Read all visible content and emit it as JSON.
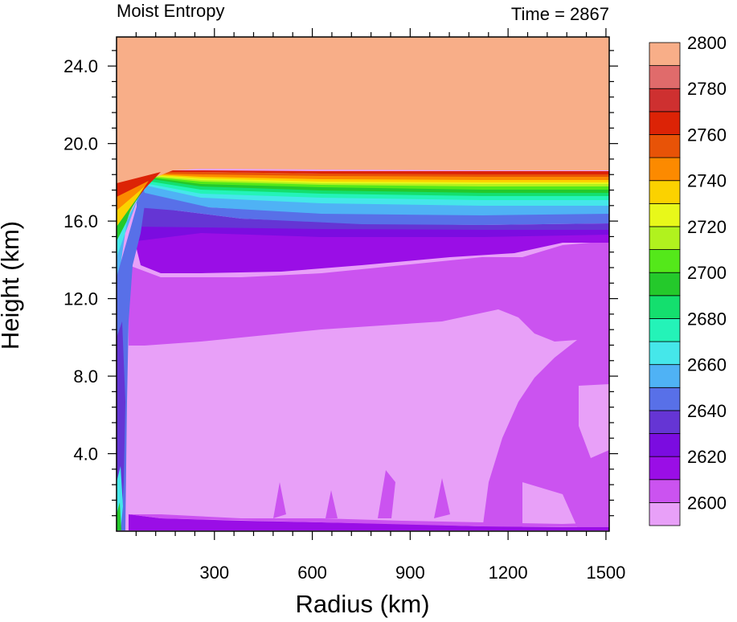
{
  "header": {
    "left_title": "Moist Entropy",
    "right_title": "Time = 2867"
  },
  "chart_data": {
    "type": "filled-contour",
    "xlabel": "Radius (km)",
    "ylabel": "Height (km)",
    "xlim": [
      0,
      1510
    ],
    "ylim": [
      0,
      25.5
    ],
    "xticks": [
      "300",
      "600",
      "900",
      "1200",
      "1500"
    ],
    "yticks": [
      "4.0",
      "8.0",
      "12.0",
      "16.0",
      "20.0",
      "24.0"
    ],
    "xtick_values": [
      300,
      600,
      900,
      1200,
      1500
    ],
    "ytick_values": [
      4,
      8,
      12,
      16,
      20,
      24
    ],
    "colorbar": {
      "labels": [
        "2600",
        "2620",
        "2640",
        "2660",
        "2680",
        "2700",
        "2720",
        "2740",
        "2760",
        "2780",
        "2800"
      ],
      "level_values": [
        2600,
        2620,
        2640,
        2660,
        2680,
        2700,
        2720,
        2740,
        2760,
        2780,
        2800
      ],
      "fill_colors": [
        "#e8a0f8",
        "#cb53f0",
        "#9a0ee6",
        "#7b0ce0",
        "#6535d4",
        "#5870e8",
        "#4fb2f5",
        "#45e7ea",
        "#24f3b8",
        "#14df6e",
        "#24c92b",
        "#54e81a",
        "#b1f21e",
        "#e8f81a",
        "#fbd200",
        "#fc8a00",
        "#e85307",
        "#dc2306",
        "#ce3030",
        "#e06b6b",
        "#f8ae88"
      ]
    },
    "field_description": "moist entropy vs radius and height"
  }
}
